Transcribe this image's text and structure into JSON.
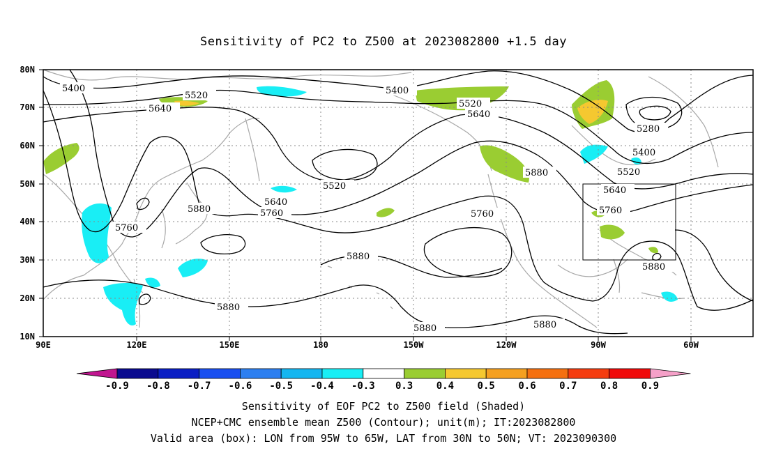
{
  "title": "Sensitivity of PC2 to Z500 at 2023082800 +1.5 day",
  "lat_labels": [
    "80N",
    "70N",
    "60N",
    "50N",
    "40N",
    "30N",
    "20N",
    "10N"
  ],
  "lon_labels": [
    "90E",
    "120E",
    "150E",
    "180",
    "150W",
    "120W",
    "90W",
    "60W"
  ],
  "contour_labels": [
    {
      "text": "5400",
      "id": "a"
    },
    {
      "text": "5520",
      "id": "b"
    },
    {
      "text": "5640",
      "id": "c"
    },
    {
      "text": "5400",
      "id": "d"
    },
    {
      "text": "5520",
      "id": "e"
    },
    {
      "text": "5640",
      "id": "f"
    },
    {
      "text": "5280",
      "id": "g"
    },
    {
      "text": "5400",
      "id": "h"
    },
    {
      "text": "5520",
      "id": "i"
    },
    {
      "text": "5880",
      "id": "j"
    },
    {
      "text": "5520",
      "id": "k"
    },
    {
      "text": "5640",
      "id": "l"
    },
    {
      "text": "5760",
      "id": "m"
    },
    {
      "text": "5880",
      "id": "n"
    },
    {
      "text": "5760",
      "id": "o"
    },
    {
      "text": "5760",
      "id": "p"
    },
    {
      "text": "5640",
      "id": "q"
    },
    {
      "text": "5760",
      "id": "r"
    },
    {
      "text": "5880",
      "id": "s"
    },
    {
      "text": "5880",
      "id": "t"
    },
    {
      "text": "5880",
      "id": "u"
    },
    {
      "text": "5880",
      "id": "v"
    },
    {
      "text": "5880",
      "id": "w"
    }
  ],
  "colorbar": {
    "colors": [
      "#c0158f",
      "#0b0b8f",
      "#0b1fc4",
      "#1a4ff0",
      "#2d7ff0",
      "#15b6f0",
      "#19eef5",
      "#ffffff",
      "#9acd32",
      "#f5c830",
      "#f5a020",
      "#f57010",
      "#f53c10",
      "#f00a0a",
      "#f5a0c8"
    ],
    "labels": [
      "-0.9",
      "-0.8",
      "-0.7",
      "-0.6",
      "-0.5",
      "-0.4",
      "-0.3",
      "0.3",
      "0.4",
      "0.5",
      "0.6",
      "0.7",
      "0.8",
      "0.9"
    ]
  },
  "footer": {
    "line1": "Sensitivity of EOF PC2 to Z500 field (Shaded)",
    "line2": "NCEP+CMC ensemble mean Z500 (Contour); unit(m); IT:2023082800",
    "line3": "Valid area (box): LON from 95W to 65W, LAT from 30N to 50N; VT: 2023090300"
  }
}
